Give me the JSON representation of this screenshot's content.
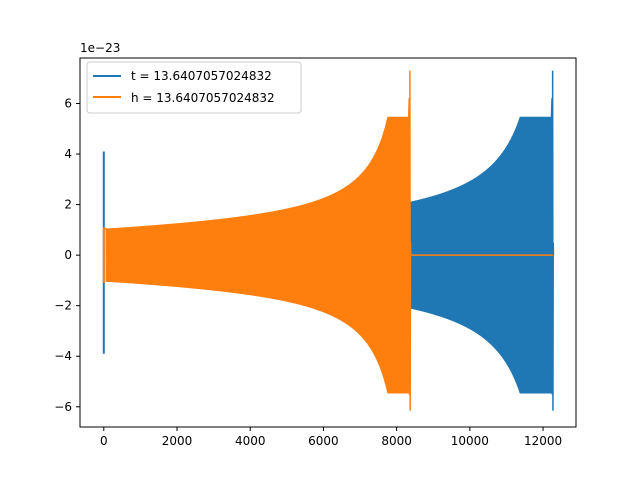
{
  "chart_data": {
    "type": "line",
    "title": "",
    "xlabel": "",
    "ylabel": "",
    "y_offset_label": "1e−23",
    "xlim": [
      -650,
      12900
    ],
    "ylim": [
      -6.8,
      7.8
    ],
    "x_ticks": [
      0,
      2000,
      4000,
      6000,
      8000,
      10000,
      12000
    ],
    "x_tick_labels": [
      "0",
      "2000",
      "4000",
      "6000",
      "8000",
      "10000",
      "12000"
    ],
    "y_ticks": [
      -6,
      -4,
      -2,
      0,
      2,
      4,
      6
    ],
    "y_tick_labels": [
      "−6",
      "−4",
      "−2",
      "0",
      "2",
      "4",
      "6"
    ],
    "grid": false,
    "legend_position": "upper-left",
    "series": [
      {
        "name": "t = 13.6407057024832",
        "color": "#1f77b4",
        "x_range": [
          0,
          12270
        ],
        "initial_spike": {
          "x": 0,
          "max": 4.1,
          "min": -3.9
        },
        "oscillation_start": {
          "x": 70,
          "amplitude": 1.05
        },
        "plateau_end": {
          "x": 8300,
          "amplitude": 1.35
        },
        "merger": {
          "x": 12270,
          "max": 7.3,
          "min": -6.15
        }
      },
      {
        "name": "h = 13.6407057024832",
        "color": "#ff7f0e",
        "x_range": [
          0,
          12270
        ],
        "initial_spike": {
          "x": 0,
          "max": 1.1,
          "min": -1.1
        },
        "oscillation_start": {
          "x": 70,
          "amplitude": 1.05
        },
        "merger": {
          "x": 8370,
          "max": 7.3,
          "min": -6.15
        },
        "zero_after": 8370
      }
    ]
  }
}
